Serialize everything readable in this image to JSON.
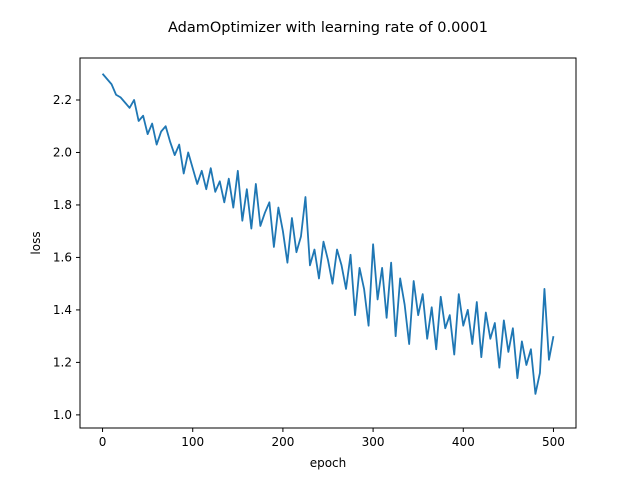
{
  "chart_data": {
    "type": "line",
    "title": "AdamOptimizer with learning rate of 0.0001",
    "xlabel": "epoch",
    "ylabel": "loss",
    "xlim": [
      -25,
      525
    ],
    "ylim": [
      0.95,
      2.36
    ],
    "xticks": [
      0,
      100,
      200,
      300,
      400,
      500
    ],
    "yticks": [
      1.0,
      1.2,
      1.4,
      1.6,
      1.8,
      2.0,
      2.2
    ],
    "ytick_labels": [
      "1.0",
      "1.2",
      "1.4",
      "1.6",
      "1.8",
      "2.0",
      "2.2"
    ],
    "grid": false,
    "color": "#1f77b4",
    "series": [
      {
        "x": [
          0,
          5,
          10,
          15,
          20,
          25,
          30,
          35,
          40,
          45,
          50,
          55,
          60,
          65,
          70,
          75,
          80,
          85,
          90,
          95,
          100,
          105,
          110,
          115,
          120,
          125,
          130,
          135,
          140,
          145,
          150,
          155,
          160,
          165,
          170,
          175,
          180,
          185,
          190,
          195,
          200,
          205,
          210,
          215,
          220,
          225,
          230,
          235,
          240,
          245,
          250,
          255,
          260,
          265,
          270,
          275,
          280,
          285,
          290,
          295,
          300,
          305,
          310,
          315,
          320,
          325,
          330,
          335,
          340,
          345,
          350,
          355,
          360,
          365,
          370,
          375,
          380,
          385,
          390,
          395,
          400,
          405,
          410,
          415,
          420,
          425,
          430,
          435,
          440,
          445,
          450,
          455,
          460,
          465,
          470,
          475,
          480,
          485,
          490,
          495,
          500
        ],
        "y": [
          2.3,
          2.28,
          2.26,
          2.22,
          2.21,
          2.19,
          2.17,
          2.2,
          2.12,
          2.14,
          2.07,
          2.11,
          2.03,
          2.08,
          2.1,
          2.04,
          1.99,
          2.03,
          1.92,
          2.0,
          1.94,
          1.88,
          1.93,
          1.86,
          1.94,
          1.85,
          1.89,
          1.81,
          1.9,
          1.79,
          1.93,
          1.74,
          1.86,
          1.71,
          1.88,
          1.72,
          1.77,
          1.81,
          1.64,
          1.79,
          1.7,
          1.58,
          1.75,
          1.62,
          1.68,
          1.83,
          1.57,
          1.63,
          1.52,
          1.66,
          1.59,
          1.5,
          1.63,
          1.57,
          1.48,
          1.61,
          1.38,
          1.56,
          1.48,
          1.34,
          1.65,
          1.44,
          1.56,
          1.37,
          1.58,
          1.3,
          1.52,
          1.42,
          1.27,
          1.51,
          1.38,
          1.46,
          1.29,
          1.41,
          1.25,
          1.45,
          1.33,
          1.38,
          1.23,
          1.46,
          1.34,
          1.4,
          1.27,
          1.43,
          1.22,
          1.39,
          1.29,
          1.35,
          1.18,
          1.36,
          1.24,
          1.33,
          1.14,
          1.28,
          1.19,
          1.25,
          1.08,
          1.16,
          1.48,
          1.21,
          1.3
        ]
      }
    ]
  }
}
